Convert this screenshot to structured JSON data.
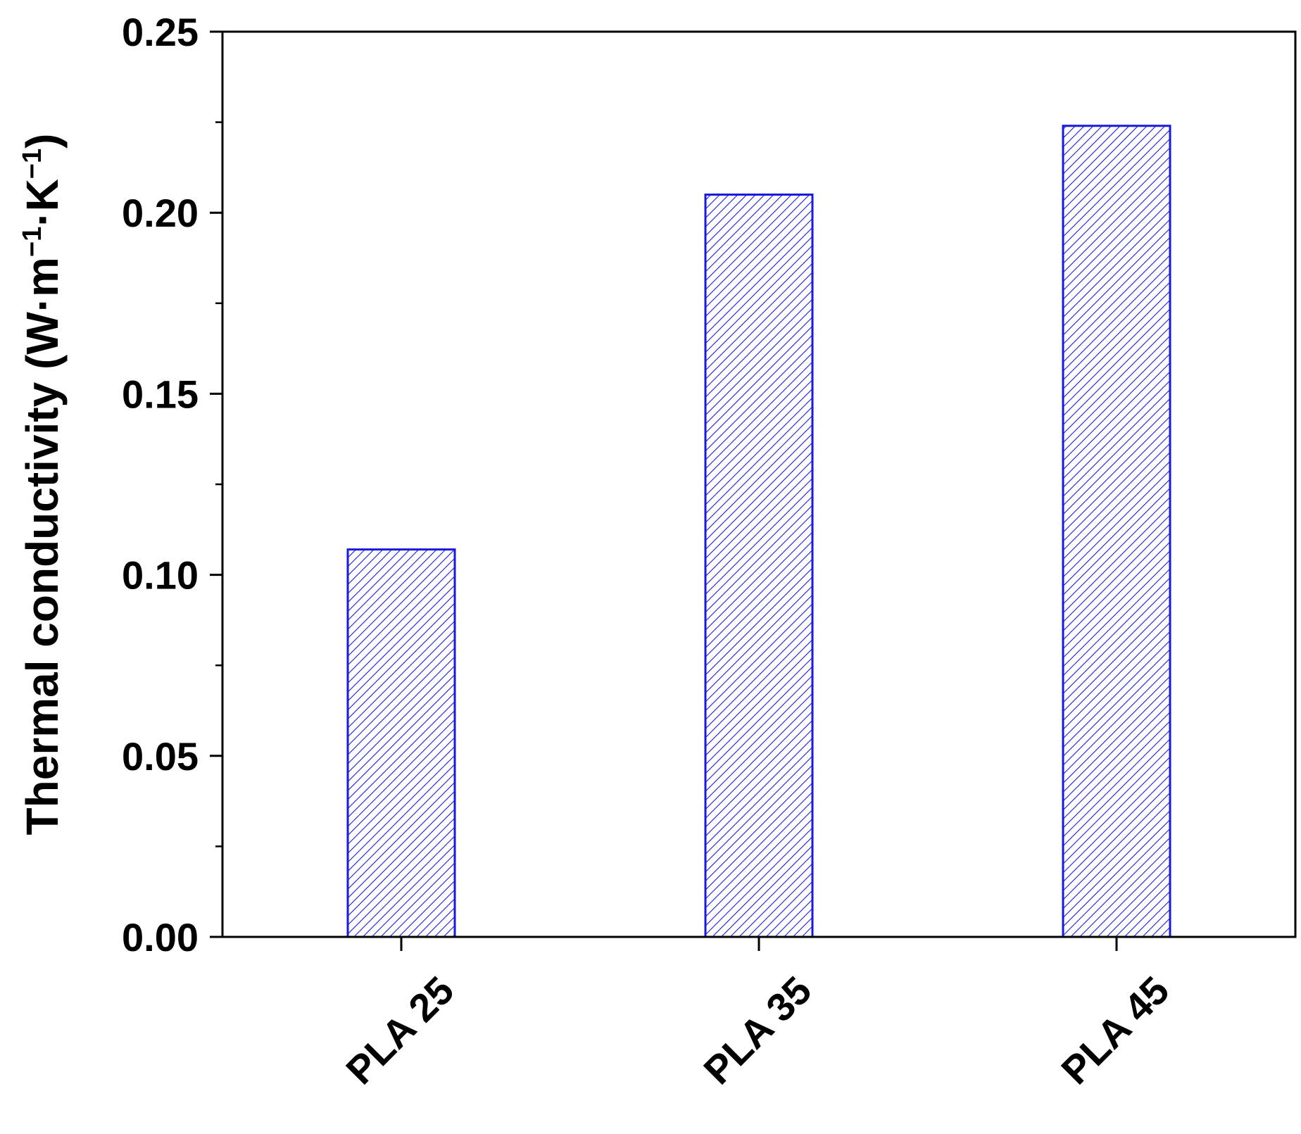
{
  "chart_data": {
    "type": "bar",
    "title": "",
    "xlabel": "",
    "ylabel_main": "Thermal conductivity (W·m",
    "ylabel_sup1": "−1",
    "ylabel_mid": "·K",
    "ylabel_sup2": "−1",
    "ylabel_end": ")",
    "categories": [
      "PLA 25",
      "PLA 35",
      "PLA 45"
    ],
    "values": [
      0.107,
      0.205,
      0.224
    ],
    "ylim": [
      0,
      0.25
    ],
    "yticks": [
      0.0,
      0.05,
      0.1,
      0.15,
      0.2,
      0.25
    ],
    "ytick_labels": [
      "0.00",
      "0.05",
      "0.10",
      "0.15",
      "0.20",
      "0.25"
    ],
    "grid": false,
    "bar_fill": "hatched",
    "bar_color": "#1a1adf"
  }
}
